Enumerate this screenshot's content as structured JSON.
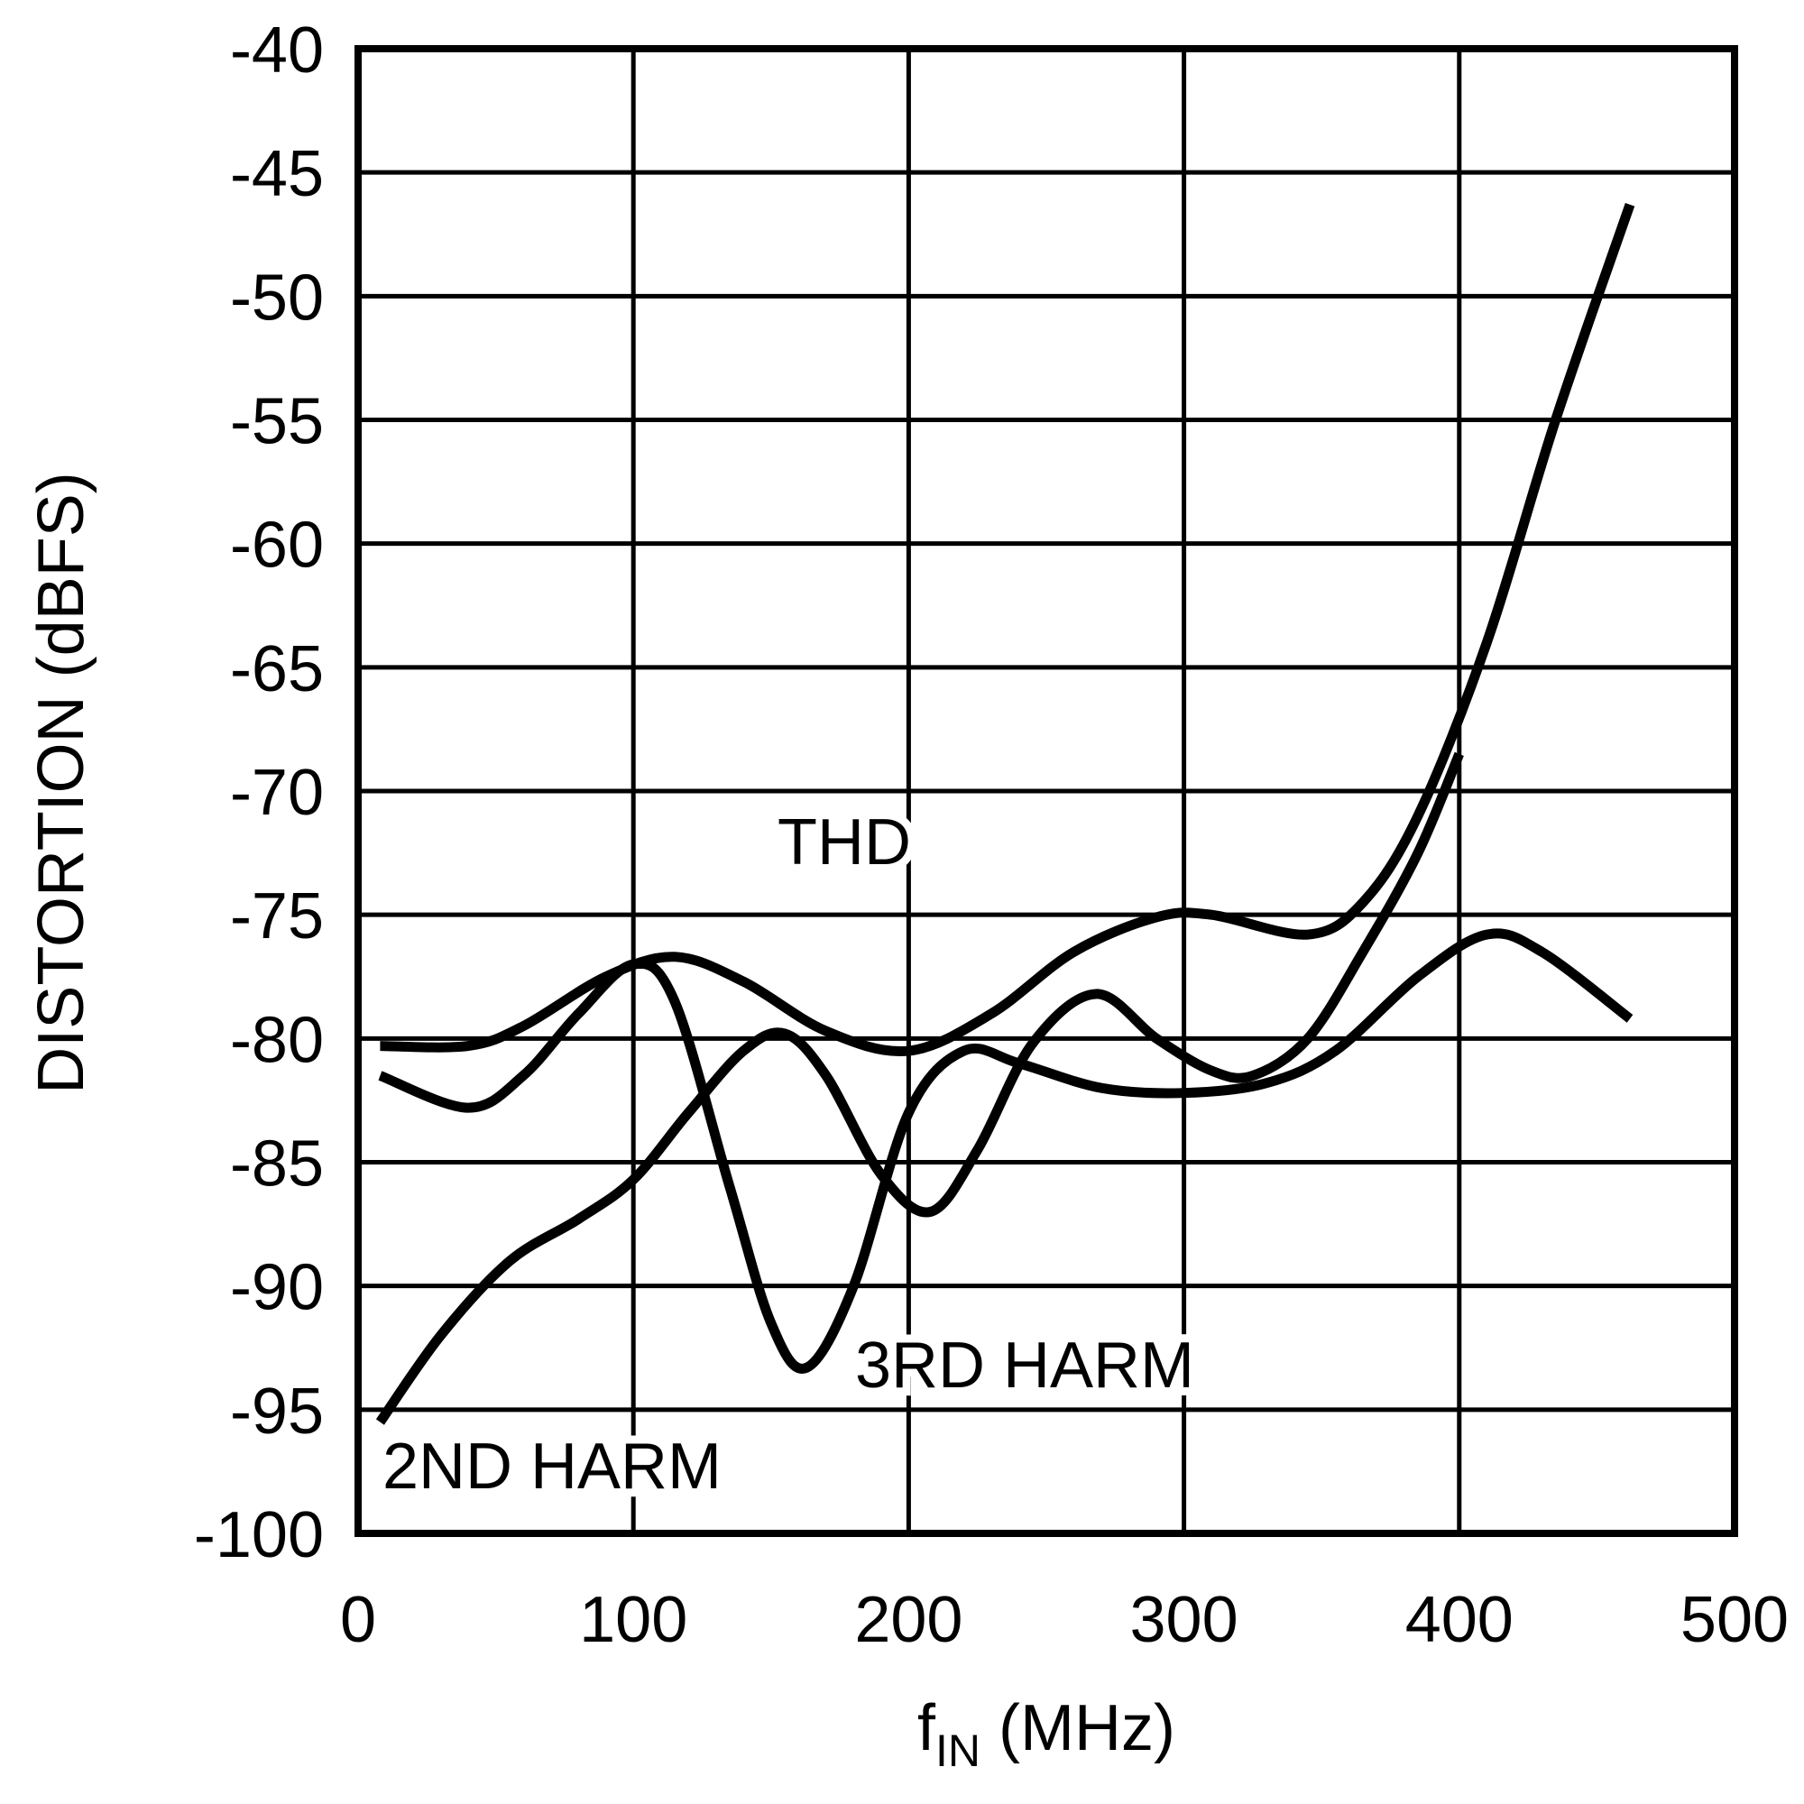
{
  "chart_data": {
    "type": "line",
    "title": "",
    "xlabel": "fIN (MHz)",
    "xlabel_main": "f",
    "xlabel_sub": "IN",
    "xlabel_unit": " (MHz)",
    "ylabel": "DISTORTION (dBFS)",
    "xlim": [
      0,
      500
    ],
    "ylim": [
      -100,
      -40
    ],
    "grid": true,
    "legend": "none (inline annotations)",
    "x_ticks": [
      0,
      100,
      200,
      300,
      400,
      500
    ],
    "x_tick_labels": [
      "0",
      "100",
      "200",
      "300",
      "400",
      "500"
    ],
    "y_ticks": [
      -40,
      -45,
      -50,
      -55,
      -60,
      -65,
      -70,
      -75,
      -80,
      -85,
      -90,
      -95,
      -100
    ],
    "y_tick_labels": [
      "-40",
      "-45",
      "-50",
      "-55",
      "-60",
      "-65",
      "-70",
      "-75",
      "-80",
      "-85",
      "-90",
      "-95",
      "-100"
    ],
    "annotations": [
      {
        "text": "THD",
        "x": 160,
        "y": -72
      },
      {
        "text": "3RD HARM",
        "x": 180,
        "y": -94
      },
      {
        "text": "2ND HARM",
        "x": 8,
        "y": -98
      }
    ],
    "series": [
      {
        "name": "THD",
        "x": [
          8,
          40,
          60,
          90,
          115,
          140,
          170,
          200,
          230,
          260,
          290,
          310,
          345,
          365,
          385,
          410,
          435,
          462
        ],
        "y": [
          -80.3,
          -80.3,
          -79.5,
          -77.5,
          -76.7,
          -77.7,
          -79.7,
          -80.5,
          -79.0,
          -76.5,
          -75.1,
          -75.0,
          -75.8,
          -74.5,
          -71.0,
          -64.0,
          -55.0,
          -46.3
        ]
      },
      {
        "name": "2ND HARM",
        "x": [
          8,
          30,
          55,
          80,
          100,
          120,
          140,
          155,
          170,
          190,
          208,
          225,
          245,
          268,
          290,
          310,
          325,
          345,
          365,
          385,
          400
        ],
        "y": [
          -95.5,
          -92.0,
          -89.0,
          -87.3,
          -85.7,
          -83.0,
          -80.5,
          -79.8,
          -81.5,
          -85.5,
          -87.0,
          -84.5,
          -80.2,
          -78.2,
          -80.0,
          -81.3,
          -81.5,
          -80.0,
          -76.5,
          -72.5,
          -68.5
        ]
      },
      {
        "name": "3RD HARM",
        "x": [
          8,
          40,
          60,
          80,
          100,
          115,
          135,
          150,
          163,
          180,
          200,
          220,
          240,
          270,
          300,
          330,
          355,
          385,
          410,
          430,
          462
        ],
        "y": [
          -81.5,
          -82.8,
          -81.5,
          -79.0,
          -77.0,
          -78.5,
          -86.0,
          -91.5,
          -93.3,
          -90.0,
          -83.0,
          -80.5,
          -81.0,
          -82.0,
          -82.2,
          -81.8,
          -80.5,
          -77.5,
          -75.8,
          -76.5,
          -79.2
        ]
      }
    ]
  }
}
